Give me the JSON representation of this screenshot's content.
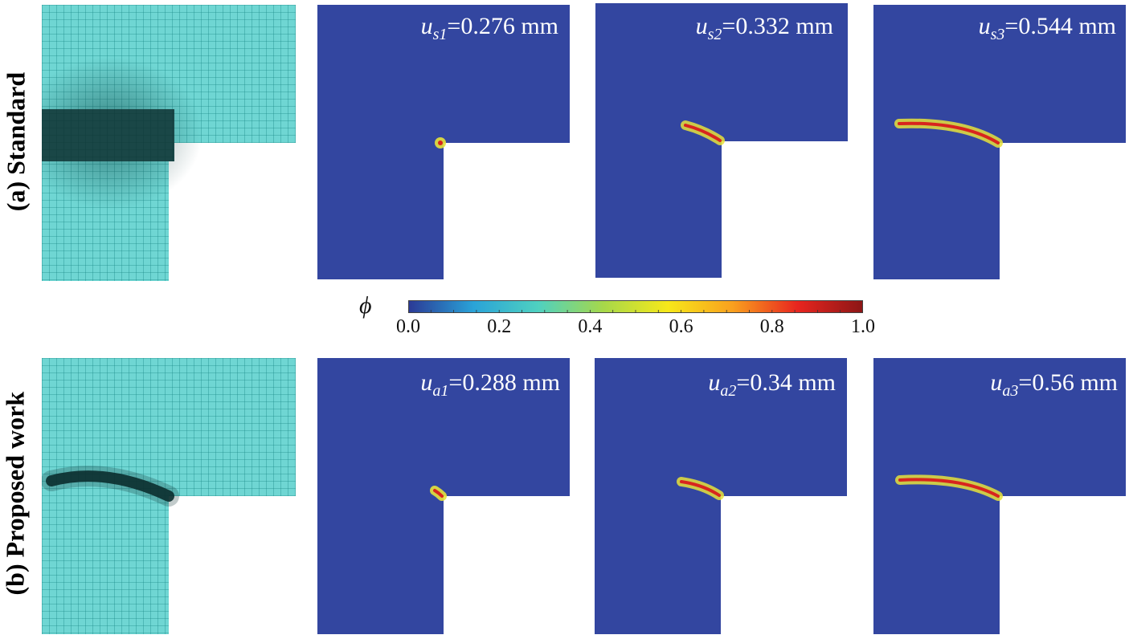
{
  "rows": [
    {
      "label": "(a) Standard",
      "panels": [
        {
          "var": "u",
          "sub": "s1",
          "value": "=0.276 mm"
        },
        {
          "var": "u",
          "sub": "s2",
          "value": "=0.332 mm"
        },
        {
          "var": "u",
          "sub": "s3",
          "value": "=0.544 mm"
        }
      ]
    },
    {
      "label": "(b) Proposed work",
      "panels": [
        {
          "var": "u",
          "sub": "a1",
          "value": "=0.288 mm"
        },
        {
          "var": "u",
          "sub": "a2",
          "value": "=0.34 mm"
        },
        {
          "var": "u",
          "sub": "a3",
          "value": "=0.56 mm"
        }
      ]
    }
  ],
  "colorbar": {
    "symbol": "ϕ",
    "ticks": [
      "0.0",
      "0.2",
      "0.4",
      "0.6",
      "0.8",
      "1.0"
    ],
    "colors": [
      "#2b3a96",
      "#2aa3d8",
      "#4fd1c0",
      "#a6d84a",
      "#f7e81a",
      "#f9a01e",
      "#e8251f",
      "#8c1616"
    ]
  },
  "colors": {
    "field_background": "#3346a0",
    "mesh_fill": "#6fd6d3",
    "mesh_line": "#1d8a89",
    "crack_core": "#d8241e",
    "crack_halo": "#e7e23a"
  }
}
